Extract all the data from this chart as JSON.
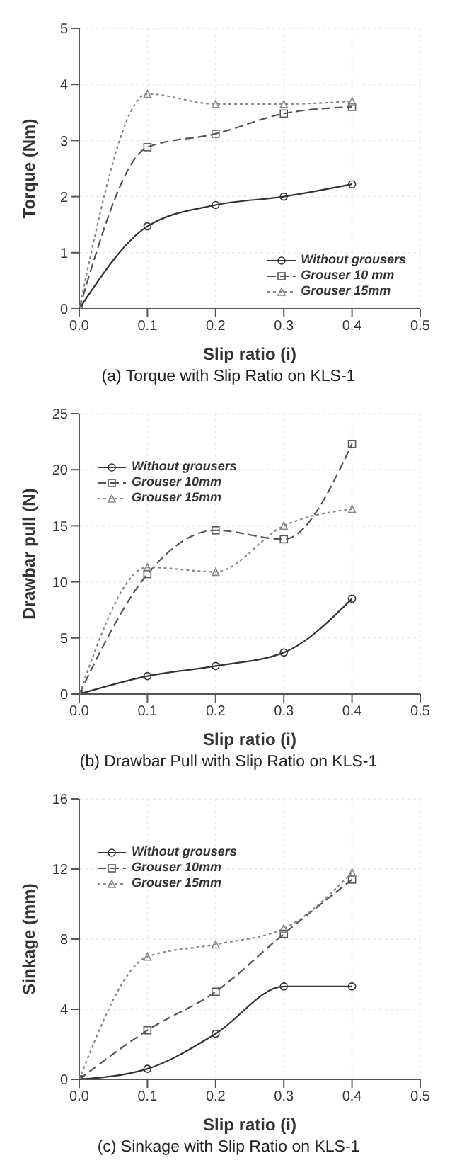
{
  "chart_data": [
    {
      "type": "line",
      "title": "(a) Torque with Slip Ratio on KLS-1",
      "xlabel": "Slip ratio (i)",
      "ylabel": "Torque (Nm)",
      "x": [
        0,
        0.1,
        0.2,
        0.3,
        0.4
      ],
      "xlim": [
        0,
        0.5
      ],
      "xticks": [
        "0.0",
        0.1,
        0.2,
        0.3,
        0.4,
        0.5
      ],
      "ylim": [
        0,
        5
      ],
      "yticks": [
        0,
        1,
        2,
        3,
        4,
        5
      ],
      "grid": true,
      "legend": "bottom right",
      "series": [
        {
          "name": "Without grousers",
          "color": "#333333",
          "line_style": "solid",
          "marker": "circle",
          "values": [
            0,
            1.47,
            1.85,
            2.0,
            2.22
          ]
        },
        {
          "name": "Grouser 10 mm",
          "color": "#555555",
          "line_style": "dashed",
          "marker": "square",
          "values": [
            0,
            2.88,
            3.12,
            3.48,
            3.6
          ]
        },
        {
          "name": "Grouser 15mm",
          "color": "#888888",
          "line_style": "dotted",
          "marker": "triangle",
          "values": [
            0,
            3.83,
            3.65,
            3.65,
            3.7
          ]
        }
      ]
    },
    {
      "type": "line",
      "title": "(b) Drawbar Pull with Slip Ratio on KLS-1",
      "xlabel": "Slip ratio (i)",
      "ylabel": "Drawbar pull (N)",
      "x": [
        0,
        0.1,
        0.2,
        0.3,
        0.4
      ],
      "xlim": [
        0,
        0.5
      ],
      "xticks": [
        "0.0",
        0.1,
        0.2,
        0.3,
        0.4,
        0.5
      ],
      "ylim": [
        0,
        25
      ],
      "yticks": [
        0,
        5,
        10,
        15,
        20,
        25
      ],
      "grid": true,
      "legend": "top left",
      "series": [
        {
          "name": "Without grousers",
          "color": "#333333",
          "line_style": "solid",
          "marker": "circle",
          "values": [
            0,
            1.6,
            2.5,
            3.7,
            8.5
          ]
        },
        {
          "name": "Grouser 10mm",
          "color": "#555555",
          "line_style": "dashed",
          "marker": "square",
          "values": [
            0,
            10.7,
            14.6,
            13.8,
            22.3
          ]
        },
        {
          "name": "Grouser 15mm",
          "color": "#888888",
          "line_style": "dotted",
          "marker": "triangle",
          "values": [
            0,
            11.3,
            10.9,
            15.0,
            16.5
          ]
        }
      ]
    },
    {
      "type": "line",
      "title": "(c) Sinkage with Slip Ratio on KLS-1",
      "xlabel": "Slip ratio (i)",
      "ylabel": "Sinkage (mm)",
      "x": [
        0,
        0.1,
        0.2,
        0.3,
        0.4
      ],
      "xlim": [
        0,
        0.5
      ],
      "xticks": [
        "0.0",
        0.1,
        0.2,
        0.3,
        0.4,
        0.5
      ],
      "ylim": [
        0,
        16
      ],
      "yticks": [
        0,
        4,
        8,
        12,
        16
      ],
      "grid": true,
      "legend": "top left",
      "series": [
        {
          "name": "Without grousers",
          "color": "#333333",
          "line_style": "solid",
          "marker": "circle",
          "values": [
            0,
            0.6,
            2.6,
            5.3,
            5.3
          ]
        },
        {
          "name": "Grouser 10mm",
          "color": "#555555",
          "line_style": "dashed",
          "marker": "square",
          "values": [
            0,
            2.8,
            5.0,
            8.3,
            11.4
          ]
        },
        {
          "name": "Grouser 15mm",
          "color": "#888888",
          "line_style": "dotted",
          "marker": "triangle",
          "values": [
            0,
            7.0,
            7.7,
            8.6,
            11.8
          ]
        }
      ]
    }
  ]
}
